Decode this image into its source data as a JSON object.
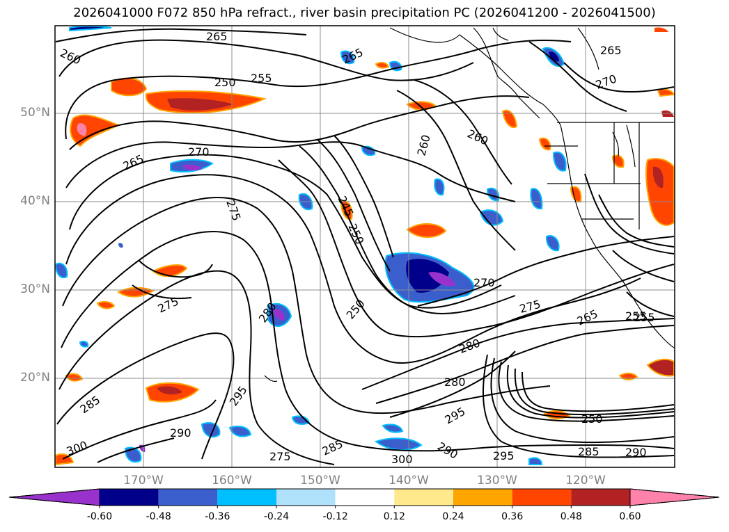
{
  "title": "2026041000 F072 850 hPa refract., river basin precipitation PC (2026041200 - 2026041500)",
  "lat_labels": [
    "50°N",
    "40°N",
    "30°N",
    "20°N"
  ],
  "lon_labels": [
    "170°W",
    "160°W",
    "150°W",
    "140°W",
    "130°W",
    "120°W"
  ],
  "contour_labels": [
    "260",
    "265",
    "250",
    "255",
    "270",
    "265",
    "275",
    "245",
    "250",
    "260",
    "265",
    "270",
    "275",
    "280",
    "285",
    "290",
    "295",
    "300",
    "275",
    "280",
    "285",
    "290",
    "295",
    "300",
    "265",
    "255",
    "265",
    "250",
    "285",
    "290",
    "295",
    "260",
    "270",
    "275",
    "280",
    "250",
    "255"
  ],
  "colorbar": {
    "ticks": [
      "-0.60",
      "-0.48",
      "-0.36",
      "-0.24",
      "-0.12",
      "0.12",
      "0.24",
      "0.36",
      "0.48",
      "0.60"
    ],
    "colors": [
      "#9932cc",
      "#00008b",
      "#3a5fcd",
      "#00bfff",
      "#afe1fa",
      "#ffffff",
      "#ffe98c",
      "#ffa500",
      "#ff4500",
      "#b22222",
      "#ff82ab"
    ],
    "extend": "both"
  }
}
